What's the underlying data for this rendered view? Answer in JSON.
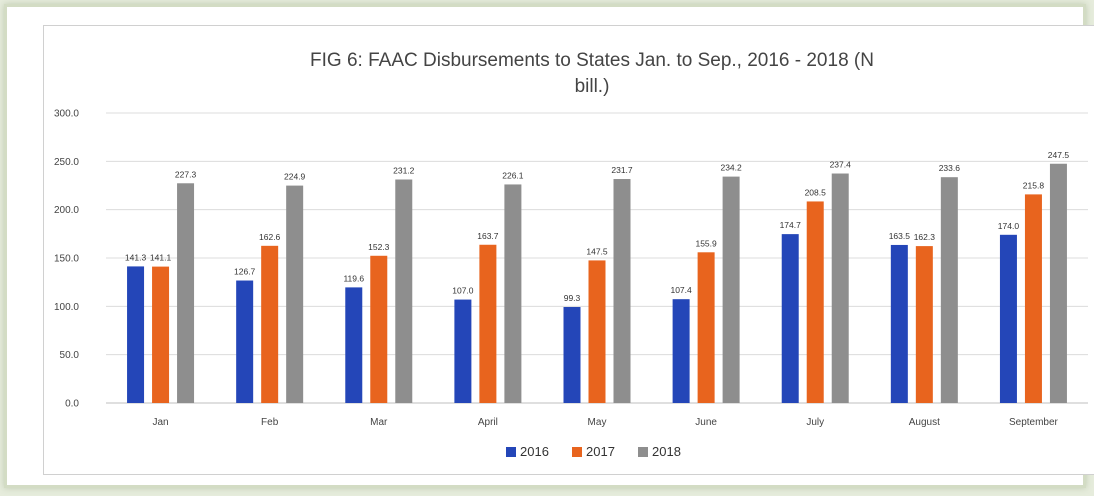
{
  "chart_data": {
    "type": "bar",
    "title_line1": "FIG 6: FAAC Disbursements to States Jan. to Sep., 2016 - 2018 (N",
    "title_line2": "bill.)",
    "categories": [
      "Jan",
      "Feb",
      "Mar",
      "April",
      "May",
      "June",
      "July",
      "August",
      "September"
    ],
    "series": [
      {
        "name": "2016",
        "color": "#2446b8",
        "values": [
          141.3,
          126.7,
          119.6,
          107.0,
          99.3,
          107.4,
          174.7,
          163.5,
          174.0
        ],
        "labels": [
          "141.3",
          "126.7",
          "119.6",
          "107.0",
          "99.3",
          "107.4",
          "174.7",
          "163.5",
          "174.0"
        ]
      },
      {
        "name": "2017",
        "color": "#e8641e",
        "values": [
          141.1,
          162.6,
          152.3,
          163.7,
          147.5,
          155.9,
          208.5,
          162.3,
          215.8
        ],
        "labels": [
          "141.1",
          "162.6",
          "152.3",
          "163.7",
          "147.5",
          "155.9",
          "208.5",
          "162.3",
          "215.8"
        ]
      },
      {
        "name": "2018",
        "color": "#8e8e8e",
        "values": [
          227.3,
          224.9,
          231.2,
          226.1,
          231.7,
          234.2,
          237.4,
          233.6,
          247.5
        ],
        "labels": [
          "227.3",
          "224.9",
          "231.2",
          "226.1",
          "231.7",
          "234.2",
          "237.4",
          "233.6",
          "247.5"
        ]
      }
    ],
    "yticks": [
      "0.0",
      "50.0",
      "100.0",
      "150.0",
      "200.0",
      "250.0",
      "300.0"
    ],
    "ylim": [
      0,
      300
    ],
    "grid": true,
    "legend_position": "bottom"
  }
}
